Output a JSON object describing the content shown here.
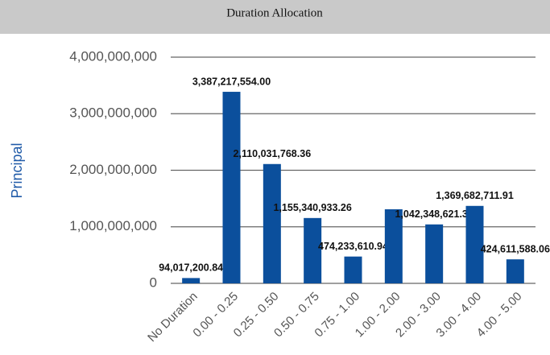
{
  "chart_data": {
    "type": "bar",
    "title": "Duration Allocation",
    "y_label": "Principal",
    "categories": [
      "No Duration",
      "0.00 - 0.25",
      "0.25 - 0.50",
      "0.50 - 0.75",
      "0.75 - 1.00",
      "1.00 - 2.00",
      "2.00 - 3.00",
      "3.00 - 4.00",
      "4.00 - 5.00"
    ],
    "values": [
      94017200.84,
      3387217554.0,
      2110031768.36,
      1155340933.26,
      474233610.94,
      1310000000,
      1042348621.37,
      1369682711.91,
      424611588.06
    ],
    "value_labels": [
      "94,017,200.84",
      "3,387,217,554.00",
      "2,110,031,768.36",
      "1,155,340,933.26",
      "474,233,610.94",
      null,
      "1,042,348,621.37",
      "1,369,682,711.91",
      "424,611,588.06"
    ],
    "color": "#0b4f9c",
    "ylim": [
      0,
      4000000000
    ],
    "yticks": [
      0,
      {
        "value": 1000000000,
        "label": "1,000,000,000"
      },
      {
        "value": 2000000000,
        "label": "2,000,000,000"
      },
      {
        "value": 3000000000,
        "label": "3,000,000,000"
      },
      {
        "value": 4000000000,
        "label": "4,000,000,000"
      }
    ],
    "grid": true
  }
}
